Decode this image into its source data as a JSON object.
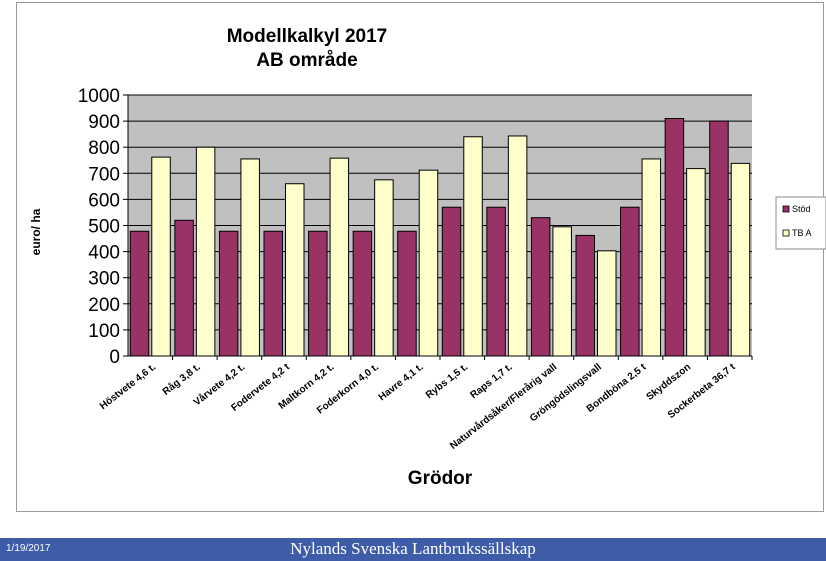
{
  "chart_data": {
    "type": "bar",
    "title": "Modellkalkyl 2017",
    "subtitle": "AB område",
    "xlabel": "Grödor",
    "ylabel": "euro/ ha",
    "ylim": [
      0,
      1000
    ],
    "yticks": [
      0,
      100,
      200,
      300,
      400,
      500,
      600,
      700,
      800,
      900,
      1000
    ],
    "grid": true,
    "legend_position": "right",
    "categories": [
      "Höstvete 4,6 t.",
      "Råg 3,8 t.",
      "Vårvete 4,2 t.",
      "Fodervete 4,2 t",
      "Maltkorn 4,2 t.",
      "Foderkorn 4,0 t.",
      "Havre 4,1 t.",
      "Rybs 1,5 t.",
      "Raps 1,7 t.",
      "Naturvårdsåker/Flerårig vall",
      "Gröngödslingsvall",
      "Bondböna 2,5 t",
      "Skyddszon",
      "Sockerbeta 36,7 t"
    ],
    "series": [
      {
        "name": "Stöd",
        "color": "#993366",
        "values": [
          478,
          520,
          478,
          478,
          478,
          478,
          478,
          570,
          570,
          530,
          462,
          570,
          910,
          900
        ]
      },
      {
        "name": "TB A",
        "color": "#ffffcc",
        "values": [
          762,
          800,
          755,
          660,
          758,
          675,
          712,
          840,
          843,
          495,
          403,
          755,
          718,
          738
        ]
      }
    ]
  },
  "footer": {
    "date": "1/19/2017",
    "organization": "Nylands Svenska Lantbrukssällskap"
  }
}
